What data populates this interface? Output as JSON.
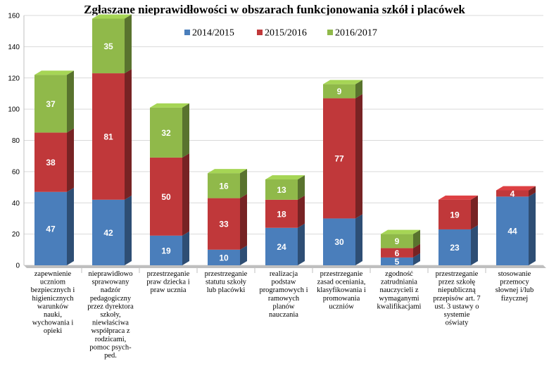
{
  "chart_data": {
    "type": "bar",
    "stacked": true,
    "title": "Zgłaszane nieprawidłowości w obszarach funkcjonowania szkół i placówek",
    "ylim": [
      0,
      160
    ],
    "yticks": [
      0,
      20,
      40,
      60,
      80,
      100,
      120,
      140,
      160
    ],
    "legend_position": "top-right",
    "categories": [
      [
        "zapewnienie",
        "uczniom",
        "bezpiecznych i",
        "higienicznych",
        "warunków",
        "nauki,",
        "wychowania i",
        "opieki"
      ],
      [
        "nieprawidłowo",
        "sprawowany",
        "nadzór",
        "pedagogiczny",
        "przez dyrektora",
        "szkoły,",
        "niewłaściwa",
        "współpraca z",
        "rodzicami,",
        "pomoc psych-",
        "ped."
      ],
      [
        "przestrzeganie",
        "praw dziecka i",
        "praw ucznia"
      ],
      [
        "przestrzeganie",
        "statutu szkoły",
        "lub placówki"
      ],
      [
        "realizacja",
        "podstaw",
        "programowych i",
        "ramowych",
        "planów",
        "nauczania"
      ],
      [
        "przestrzeganie",
        "zasad oceniania,",
        "klasyfikowania i",
        "promowania",
        "uczniów"
      ],
      [
        "zgodność",
        "zatrudniania",
        "nauczycieli z",
        "wymaganymi",
        "kwalifikacjami"
      ],
      [
        "przestrzeganie",
        "przez szkołę",
        "niepubliczną",
        "przepisów art. 7",
        "ust. 3 ustawy o",
        "systemie",
        "oświaty"
      ],
      [
        "stosowanie",
        "przemocy",
        "słownej i/lub",
        "fizycznej"
      ]
    ],
    "series": [
      {
        "name": "2014/2015",
        "color": "#4a7ebb",
        "values": [
          47,
          42,
          19,
          10,
          24,
          30,
          5,
          23,
          44
        ]
      },
      {
        "name": "2015/2016",
        "color": "#c0383a",
        "values": [
          38,
          81,
          50,
          33,
          18,
          77,
          6,
          19,
          4
        ]
      },
      {
        "name": "2016/2017",
        "color": "#90b94a",
        "values": [
          37,
          35,
          32,
          16,
          13,
          9,
          9,
          0,
          0
        ]
      }
    ]
  }
}
